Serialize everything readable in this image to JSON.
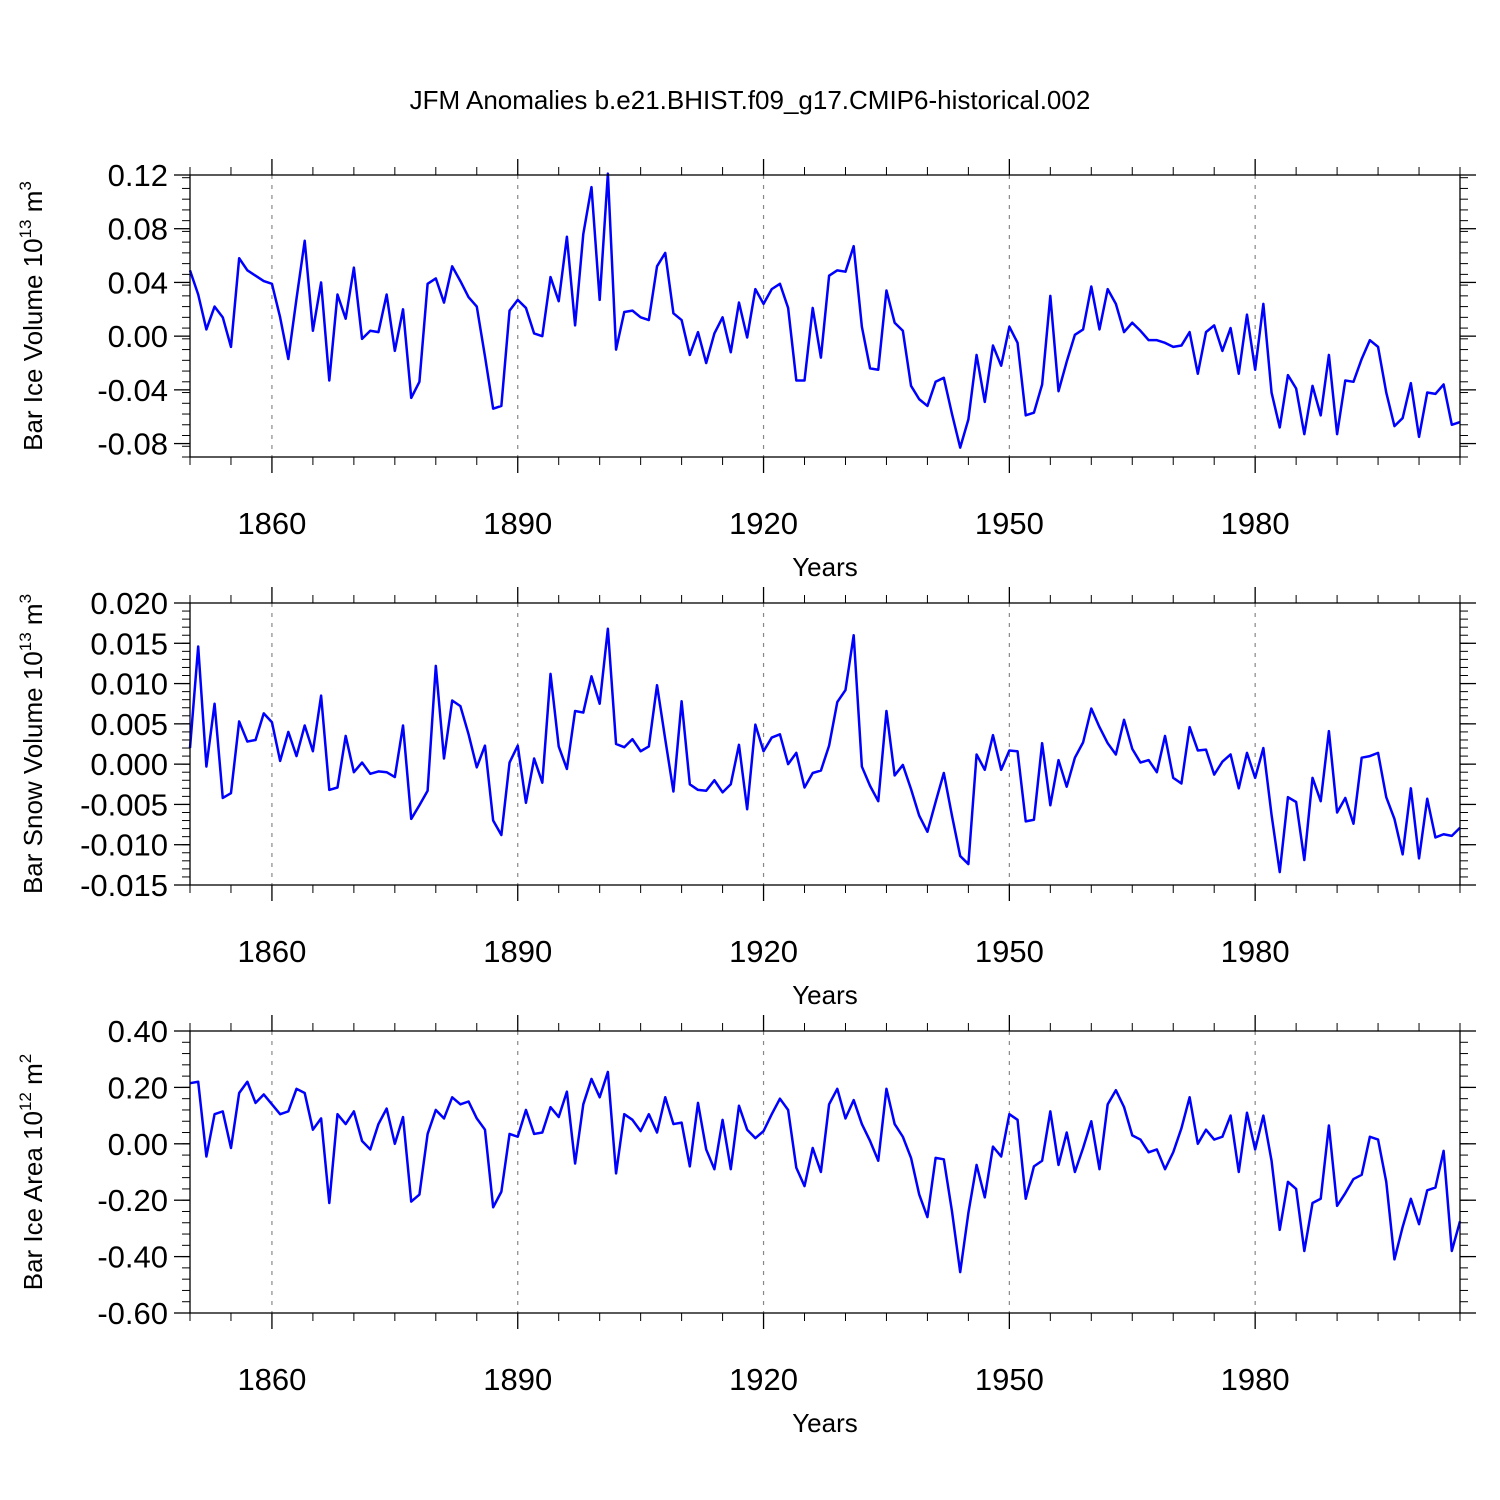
{
  "title": "JFM Anomalies b.e21.BHIST.f09_g17.CMIP6-historical.002",
  "line_color": "#0000ff",
  "chart_data": [
    {
      "type": "line",
      "ylabel": "Bar Ice Volume 10",
      "ylabel_exp": "13",
      "ylabel_unit": " m",
      "ylabel_unit_exp": "3",
      "xlabel": "Years",
      "xlim": [
        1850,
        2005
      ],
      "ylim": [
        -0.09,
        0.12
      ],
      "yticks": [
        -0.08,
        -0.04,
        0.0,
        0.04,
        0.08,
        0.12
      ],
      "ytick_labels": [
        "-0.08",
        "-0.04",
        "0.00",
        "0.04",
        "0.08",
        "0.12"
      ],
      "xticks": [
        1860,
        1890,
        1920,
        1950,
        1980
      ],
      "xtick_labels": [
        "1860",
        "1890",
        "1920",
        "1950",
        "1980"
      ],
      "x_start": 1850,
      "values": [
        0.049,
        0.031,
        0.005,
        0.022,
        0.014,
        -0.008,
        0.058,
        0.049,
        0.045,
        0.041,
        0.039,
        0.014,
        -0.017,
        0.028,
        0.071,
        0.004,
        0.04,
        -0.033,
        0.031,
        0.013,
        0.051,
        -0.002,
        0.004,
        0.003,
        0.031,
        -0.011,
        0.02,
        -0.046,
        -0.034,
        0.039,
        0.043,
        0.025,
        0.052,
        0.041,
        0.029,
        0.022,
        -0.015,
        -0.054,
        -0.052,
        0.019,
        0.027,
        0.021,
        0.002,
        0.0,
        0.044,
        0.026,
        0.074,
        0.008,
        0.076,
        0.111,
        0.027,
        0.121,
        -0.01,
        0.018,
        0.019,
        0.014,
        0.012,
        0.052,
        0.062,
        0.017,
        0.012,
        -0.014,
        0.003,
        -0.02,
        0.002,
        0.014,
        -0.012,
        0.025,
        -0.001,
        0.035,
        0.024,
        0.035,
        0.039,
        0.021,
        -0.033,
        -0.033,
        0.021,
        -0.016,
        0.045,
        0.049,
        0.048,
        0.067,
        0.007,
        -0.024,
        -0.025,
        0.034,
        0.01,
        0.004,
        -0.037,
        -0.047,
        -0.052,
        -0.034,
        -0.031,
        -0.058,
        -0.083,
        -0.062,
        -0.014,
        -0.049,
        -0.007,
        -0.022,
        0.007,
        -0.005,
        -0.059,
        -0.057,
        -0.036,
        0.03,
        -0.041,
        -0.019,
        0.001,
        0.005,
        0.037,
        0.005,
        0.035,
        0.024,
        0.003,
        0.01,
        0.004,
        -0.003,
        -0.003,
        -0.005,
        -0.008,
        -0.007,
        0.003,
        -0.028,
        0.003,
        0.008,
        -0.011,
        0.006,
        -0.028,
        0.016,
        -0.025,
        0.024,
        -0.042,
        -0.068,
        -0.029,
        -0.039,
        -0.073,
        -0.037,
        -0.059,
        -0.014,
        -0.073,
        -0.033,
        -0.034,
        -0.017,
        -0.003,
        -0.008,
        -0.042,
        -0.067,
        -0.061,
        -0.035,
        -0.075,
        -0.042,
        -0.043,
        -0.036,
        -0.066,
        -0.064
      ]
    },
    {
      "type": "line",
      "ylabel": "Bar Snow Volume 10",
      "ylabel_exp": "13",
      "ylabel_unit": " m",
      "ylabel_unit_exp": "3",
      "xlabel": "Years",
      "xlim": [
        1850,
        2005
      ],
      "ylim": [
        -0.015,
        0.02
      ],
      "yticks": [
        -0.015,
        -0.01,
        -0.005,
        0.0,
        0.005,
        0.01,
        0.015,
        0.02
      ],
      "ytick_labels": [
        "-0.015",
        "-0.010",
        "-0.005",
        "0.000",
        "0.005",
        "0.010",
        "0.015",
        "0.020"
      ],
      "xticks": [
        1860,
        1890,
        1920,
        1950,
        1980
      ],
      "xtick_labels": [
        "1860",
        "1890",
        "1920",
        "1950",
        "1980"
      ],
      "x_start": 1850,
      "values": [
        0.002,
        0.0146,
        -0.0003,
        0.0075,
        -0.0042,
        -0.0036,
        0.0053,
        0.0028,
        0.003,
        0.0063,
        0.0052,
        0.0004,
        0.004,
        0.001,
        0.0048,
        0.0016,
        0.0085,
        -0.0032,
        -0.0029,
        0.0035,
        -0.001,
        0.0002,
        -0.0012,
        -0.0009,
        -0.001,
        -0.0016,
        0.0048,
        -0.0068,
        -0.0051,
        -0.0033,
        0.0122,
        0.0007,
        0.0079,
        0.0072,
        0.0037,
        -0.0004,
        0.0023,
        -0.007,
        -0.0088,
        0.0002,
        0.0023,
        -0.0048,
        0.0007,
        -0.0023,
        0.0112,
        0.0022,
        -0.0006,
        0.0066,
        0.0064,
        0.0109,
        0.0075,
        0.0168,
        0.0025,
        0.0021,
        0.0031,
        0.0016,
        0.0022,
        0.0098,
        0.0031,
        -0.0034,
        0.0078,
        -0.0025,
        -0.0032,
        -0.0033,
        -0.002,
        -0.0035,
        -0.0025,
        0.0024,
        -0.0056,
        0.0049,
        0.0016,
        0.0033,
        0.0037,
        0.0,
        0.0014,
        -0.0029,
        -0.0011,
        -0.0008,
        0.0023,
        0.0077,
        0.0092,
        0.016,
        -0.0003,
        -0.0027,
        -0.0046,
        0.0066,
        -0.0014,
        -0.0001,
        -0.0031,
        -0.0064,
        -0.0084,
        -0.0047,
        -0.0011,
        -0.0064,
        -0.0114,
        -0.0124,
        0.0012,
        -0.0007,
        0.0036,
        -0.0007,
        0.0017,
        0.0016,
        -0.0071,
        -0.0069,
        0.0026,
        -0.0051,
        0.0005,
        -0.0028,
        0.0008,
        0.0027,
        0.0069,
        0.0046,
        0.0026,
        0.0012,
        0.0055,
        0.0019,
        0.0002,
        0.0005,
        -0.001,
        0.0035,
        -0.0017,
        -0.0024,
        0.0046,
        0.0017,
        0.0018,
        -0.0013,
        0.0003,
        0.0012,
        -0.003,
        0.0014,
        -0.0017,
        0.002,
        -0.0063,
        -0.0134,
        -0.0041,
        -0.0047,
        -0.0119,
        -0.0017,
        -0.0046,
        0.0041,
        -0.006,
        -0.0042,
        -0.0074,
        0.0008,
        0.001,
        0.0014,
        -0.0041,
        -0.0068,
        -0.0112,
        -0.003,
        -0.0117,
        -0.0043,
        -0.0091,
        -0.0087,
        -0.0089,
        -0.0079
      ]
    },
    {
      "type": "line",
      "ylabel": "Bar Ice Area 10",
      "ylabel_exp": "12",
      "ylabel_unit": " m",
      "ylabel_unit_exp": "2",
      "xlabel": "Years",
      "xlim": [
        1850,
        2005
      ],
      "ylim": [
        -0.6,
        0.4
      ],
      "yticks": [
        -0.6,
        -0.4,
        -0.2,
        0.0,
        0.2,
        0.4
      ],
      "ytick_labels": [
        "-0.60",
        "-0.40",
        "-0.20",
        "0.00",
        "0.20",
        "0.40"
      ],
      "xticks": [
        1860,
        1890,
        1920,
        1950,
        1980
      ],
      "xtick_labels": [
        "1860",
        "1890",
        "1920",
        "1950",
        "1980"
      ],
      "x_start": 1850,
      "values": [
        0.215,
        0.22,
        -0.045,
        0.105,
        0.115,
        -0.015,
        0.18,
        0.22,
        0.145,
        0.175,
        0.14,
        0.105,
        0.115,
        0.195,
        0.18,
        0.05,
        0.09,
        -0.21,
        0.105,
        0.07,
        0.115,
        0.01,
        -0.02,
        0.07,
        0.125,
        0.0,
        0.095,
        -0.205,
        -0.18,
        0.035,
        0.12,
        0.09,
        0.165,
        0.14,
        0.15,
        0.09,
        0.05,
        -0.225,
        -0.17,
        0.035,
        0.025,
        0.12,
        0.035,
        0.04,
        0.13,
        0.095,
        0.185,
        -0.07,
        0.14,
        0.23,
        0.165,
        0.255,
        -0.105,
        0.105,
        0.085,
        0.045,
        0.105,
        0.04,
        0.165,
        0.07,
        0.075,
        -0.08,
        0.145,
        -0.02,
        -0.09,
        0.085,
        -0.09,
        0.135,
        0.05,
        0.02,
        0.045,
        0.105,
        0.16,
        0.12,
        -0.085,
        -0.15,
        -0.015,
        -0.1,
        0.14,
        0.195,
        0.09,
        0.155,
        0.07,
        0.01,
        -0.06,
        0.195,
        0.07,
        0.025,
        -0.05,
        -0.18,
        -0.26,
        -0.05,
        -0.055,
        -0.24,
        -0.455,
        -0.245,
        -0.075,
        -0.19,
        -0.01,
        -0.045,
        0.105,
        0.085,
        -0.195,
        -0.08,
        -0.06,
        0.115,
        -0.075,
        0.04,
        -0.1,
        -0.015,
        0.08,
        -0.09,
        0.14,
        0.19,
        0.13,
        0.03,
        0.015,
        -0.03,
        -0.02,
        -0.09,
        -0.03,
        0.055,
        0.165,
        0.0,
        0.05,
        0.015,
        0.025,
        0.1,
        -0.1,
        0.11,
        -0.02,
        0.1,
        -0.06,
        -0.305,
        -0.135,
        -0.16,
        -0.38,
        -0.21,
        -0.195,
        0.065,
        -0.22,
        -0.175,
        -0.125,
        -0.11,
        0.025,
        0.015,
        -0.135,
        -0.41,
        -0.295,
        -0.195,
        -0.285,
        -0.165,
        -0.155,
        -0.025,
        -0.38,
        -0.275
      ]
    }
  ]
}
